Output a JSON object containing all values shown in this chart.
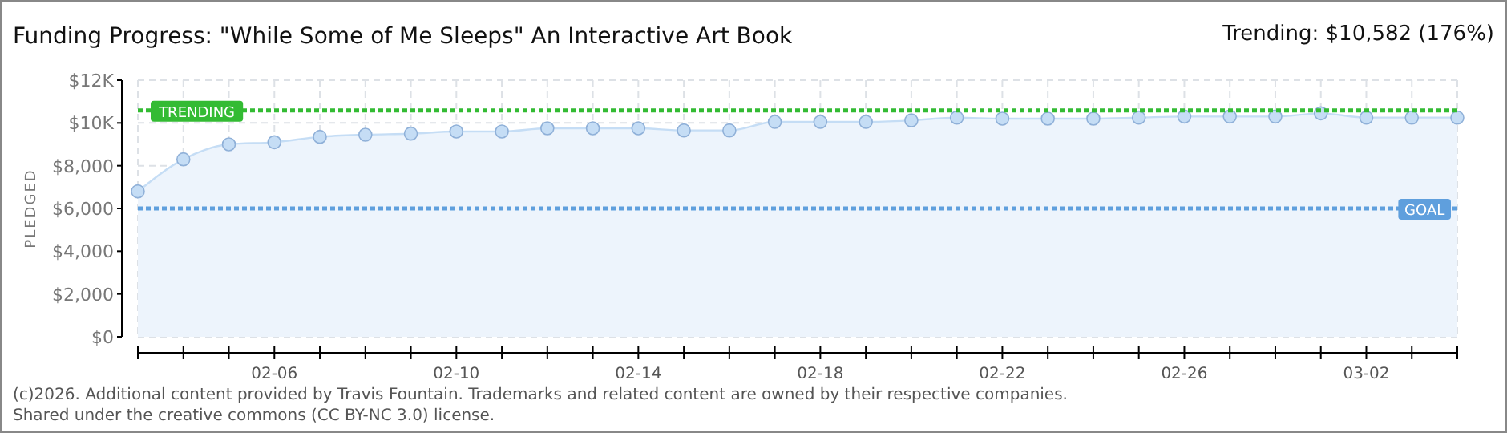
{
  "chart_data": {
    "type": "area",
    "title": "Funding Progress: \"While Some of Me Sleeps\" An Interactive Art Book",
    "subtitle": "Trending: $10,582 (176%)",
    "ylabel": "PLEDGED",
    "x": [
      "2026-02-03",
      "2026-02-04",
      "2026-02-05",
      "2026-02-06",
      "2026-02-07",
      "2026-02-08",
      "2026-02-09",
      "2026-02-10",
      "2026-02-11",
      "2026-02-12",
      "2026-02-13",
      "2026-02-14",
      "2026-02-15",
      "2026-02-16",
      "2026-02-17",
      "2026-02-18",
      "2026-02-19",
      "2026-02-20",
      "2026-02-21",
      "2026-02-22",
      "2026-02-23",
      "2026-02-24",
      "2026-02-25",
      "2026-02-26",
      "2026-02-27",
      "2026-02-28",
      "2026-03-01",
      "2026-03-02",
      "2026-03-03",
      "2026-03-04"
    ],
    "series": [
      {
        "color": "#c5ddf5",
        "values": [
          6800,
          8300,
          9000,
          9100,
          9350,
          9450,
          9500,
          9600,
          9600,
          9750,
          9750,
          9750,
          9650,
          9650,
          10050,
          10050,
          10050,
          10120,
          10250,
          10200,
          10200,
          10200,
          10250,
          10300,
          10300,
          10300,
          10450,
          10250,
          10250,
          10250
        ]
      }
    ],
    "xlim": [
      "2026-02-03",
      "2026-03-04"
    ],
    "xticks": [
      {
        "value": "2026-02-03",
        "label": null
      },
      {
        "value": "2026-02-04",
        "label": null
      },
      {
        "value": "2026-02-05",
        "label": null
      },
      {
        "value": "2026-02-06",
        "label": "02-06"
      },
      {
        "value": "2026-02-07",
        "label": null
      },
      {
        "value": "2026-02-08",
        "label": null
      },
      {
        "value": "2026-02-09",
        "label": null
      },
      {
        "value": "2026-02-10",
        "label": "02-10"
      },
      {
        "value": "2026-02-11",
        "label": null
      },
      {
        "value": "2026-02-12",
        "label": null
      },
      {
        "value": "2026-02-13",
        "label": null
      },
      {
        "value": "2026-02-14",
        "label": "02-14"
      },
      {
        "value": "2026-02-15",
        "label": null
      },
      {
        "value": "2026-02-16",
        "label": null
      },
      {
        "value": "2026-02-17",
        "label": null
      },
      {
        "value": "2026-02-18",
        "label": "02-18"
      },
      {
        "value": "2026-02-19",
        "label": null
      },
      {
        "value": "2026-02-20",
        "label": null
      },
      {
        "value": "2026-02-21",
        "label": null
      },
      {
        "value": "2026-02-22",
        "label": "02-22"
      },
      {
        "value": "2026-02-23",
        "label": null
      },
      {
        "value": "2026-02-24",
        "label": null
      },
      {
        "value": "2026-02-25",
        "label": null
      },
      {
        "value": "2026-02-26",
        "label": "02-26"
      },
      {
        "value": "2026-02-27",
        "label": null
      },
      {
        "value": "2026-02-28",
        "label": null
      },
      {
        "value": "2026-03-01",
        "label": null
      },
      {
        "value": "2026-03-02",
        "label": "03-02"
      },
      {
        "value": "2026-03-03",
        "label": null
      },
      {
        "value": "2026-03-04",
        "label": null
      }
    ],
    "ylim": [
      0,
      12000
    ],
    "yticks": [
      {
        "value": 0,
        "label": "$0"
      },
      {
        "value": 2000,
        "label": "$2,000"
      },
      {
        "value": 4000,
        "label": "$4,000"
      },
      {
        "value": 6000,
        "label": "$6,000"
      },
      {
        "value": 8000,
        "label": "$8,000"
      },
      {
        "value": 10000,
        "label": "$10K"
      },
      {
        "value": 12000,
        "label": "$12K"
      }
    ],
    "ref_lines": [
      {
        "axis": "y",
        "value": 10582,
        "label": "TRENDING",
        "color": "#33bb33",
        "line_style": "dotted"
      },
      {
        "axis": "y",
        "value": 6000,
        "label": "GOAL",
        "color": "#5f9fdd",
        "line_style": "dotted"
      }
    ],
    "grid": true,
    "marker": "circle",
    "annotations": [
      "(c)2026. Additional content provided by Travis Fountain. Trademarks and related content are owned by their respective companies.",
      "Shared under the creative commons (CC BY-NC 3.0) license."
    ]
  }
}
